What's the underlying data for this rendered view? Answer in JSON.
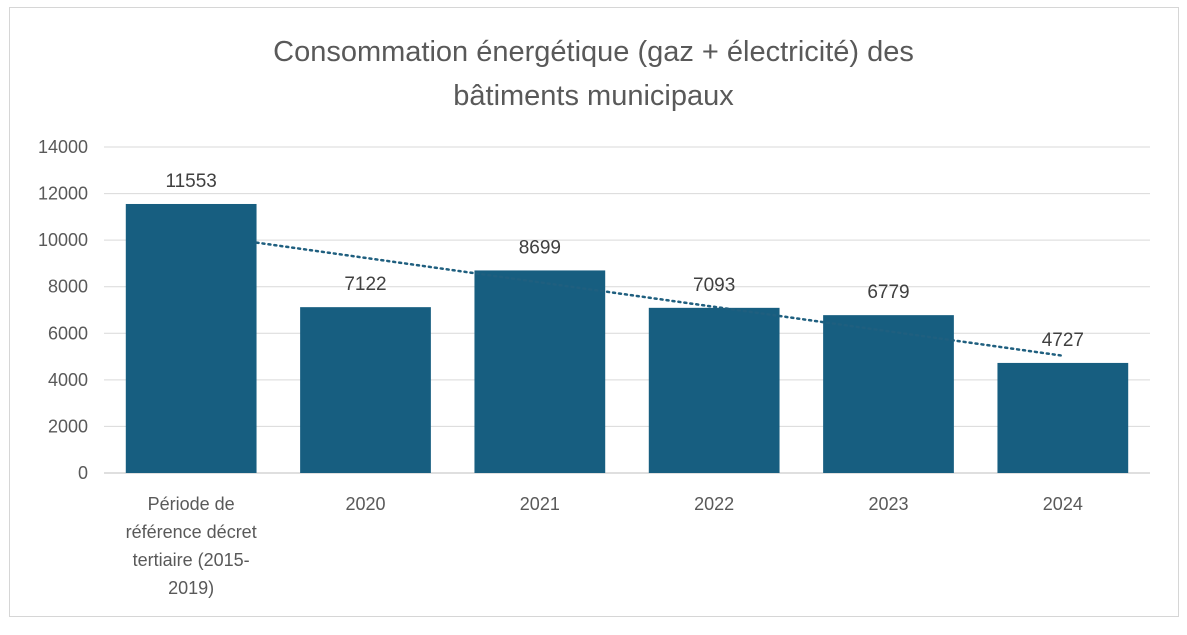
{
  "chart_data": {
    "type": "bar",
    "title_lines": [
      "Consommation énergétique (gaz + électricité) des",
      "bâtiments municipaux"
    ],
    "categories": [
      [
        "Période de",
        "référence décret",
        "tertiaire (2015-",
        "2019)"
      ],
      [
        "2020"
      ],
      [
        "2021"
      ],
      [
        "2022"
      ],
      [
        "2023"
      ],
      [
        "2024"
      ]
    ],
    "values": [
      11553,
      7122,
      8699,
      7093,
      6779,
      4727
    ],
    "data_labels": [
      "11553",
      "7122",
      "8699",
      "7093",
      "6779",
      "4727"
    ],
    "y_ticks": [
      "0",
      "2000",
      "4000",
      "6000",
      "8000",
      "10000",
      "12000",
      "14000"
    ],
    "ylim": [
      0,
      14000
    ],
    "grid": true,
    "trendline": "linear",
    "colors": {
      "bar": "#175e80",
      "trend": "#1f5f7f",
      "grid": "#d9d9d9",
      "axis": "#bfbfbf"
    }
  }
}
